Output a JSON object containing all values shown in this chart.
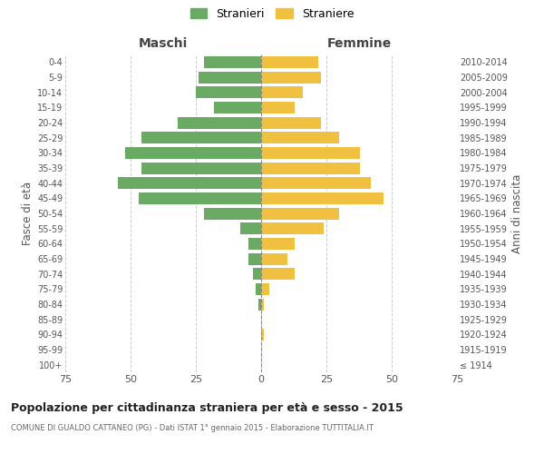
{
  "age_groups": [
    "100+",
    "95-99",
    "90-94",
    "85-89",
    "80-84",
    "75-79",
    "70-74",
    "65-69",
    "60-64",
    "55-59",
    "50-54",
    "45-49",
    "40-44",
    "35-39",
    "30-34",
    "25-29",
    "20-24",
    "15-19",
    "10-14",
    "5-9",
    "0-4"
  ],
  "birth_years": [
    "≤ 1914",
    "1915-1919",
    "1920-1924",
    "1925-1929",
    "1930-1934",
    "1935-1939",
    "1940-1944",
    "1945-1949",
    "1950-1954",
    "1955-1959",
    "1960-1964",
    "1965-1969",
    "1970-1974",
    "1975-1979",
    "1980-1984",
    "1985-1989",
    "1990-1994",
    "1995-1999",
    "2000-2004",
    "2005-2009",
    "2010-2014"
  ],
  "maschi": [
    0,
    0,
    0,
    0,
    1,
    2,
    3,
    5,
    5,
    8,
    22,
    47,
    55,
    46,
    52,
    46,
    32,
    18,
    25,
    24,
    22
  ],
  "femmine": [
    0,
    0,
    1,
    0,
    1,
    3,
    13,
    10,
    13,
    24,
    30,
    47,
    42,
    38,
    38,
    30,
    23,
    13,
    16,
    23,
    22
  ],
  "maschi_color": "#6aaa64",
  "femmine_color": "#f0c040",
  "background_color": "#ffffff",
  "grid_color": "#cccccc",
  "title": "Popolazione per cittadinanza straniera per età e sesso - 2015",
  "subtitle": "COMUNE DI GUALDO CATTANEO (PG) - Dati ISTAT 1° gennaio 2015 - Elaborazione TUTTITALIA.IT",
  "ylabel_left": "Fasce di età",
  "ylabel_right": "Anni di nascita",
  "xlabel_maschi": "Maschi",
  "xlabel_femmine": "Femmine",
  "legend_stranieri": "Stranieri",
  "legend_straniere": "Straniere",
  "xlim": 75
}
